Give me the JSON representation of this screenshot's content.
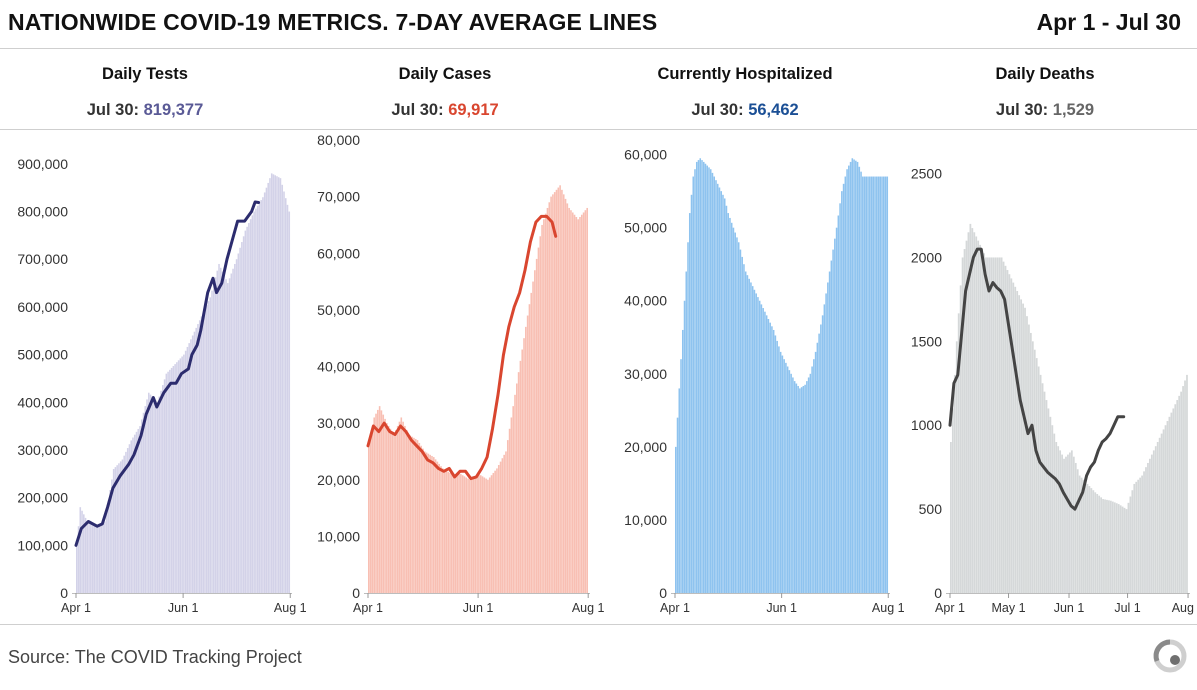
{
  "header": {
    "title": "NATIONWIDE COVID-19 METRICS. 7-DAY AVERAGE LINES",
    "date_range": "Apr 1 - Jul 30"
  },
  "metrics": [
    {
      "name": "Daily Tests",
      "value_prefix": "Jul 30:",
      "value": "819,377",
      "color": "#4f4f8f"
    },
    {
      "name": "Daily Cases",
      "value_prefix": "Jul 30:",
      "value": "69,917",
      "color": "#d9462f"
    },
    {
      "name": "Currently Hospitalized",
      "value_prefix": "Jul 30:",
      "value": "56,462",
      "color": "#1b4f95"
    },
    {
      "name": "Daily Deaths",
      "value_prefix": "Jul 30:",
      "value": "1,529",
      "color": "#555555"
    }
  ],
  "footer": {
    "source": "Source: The COVID Tracking Project",
    "logo_icon": "covid-tracking-project-logo-icon"
  },
  "chart_data": [
    {
      "type": "bar",
      "name": "Daily Tests",
      "bar_color": "#d3d2e8",
      "line_color": "#2c2c6e",
      "ylim": [
        0,
        950000
      ],
      "yticks": [
        0,
        100000,
        200000,
        300000,
        400000,
        500000,
        600000,
        700000,
        800000,
        900000
      ],
      "ytick_labels": [
        "0",
        "100,000",
        "200,000",
        "300,000",
        "400,000",
        "500,000",
        "600,000",
        "700,000",
        "800,000",
        "900,000"
      ],
      "xlim": [
        0,
        123
      ],
      "xticks": [
        0,
        61,
        122
      ],
      "xtick_labels": [
        "Apr 1",
        "Jun 1",
        "Aug 1"
      ],
      "bar_days": [
        0,
        121
      ],
      "bar_points": [
        [
          0,
          100000
        ],
        [
          2,
          180000
        ],
        [
          6,
          150000
        ],
        [
          12,
          140000
        ],
        [
          16,
          150000
        ],
        [
          21,
          260000
        ],
        [
          26,
          280000
        ],
        [
          31,
          320000
        ],
        [
          36,
          350000
        ],
        [
          41,
          420000
        ],
        [
          46,
          400000
        ],
        [
          51,
          460000
        ],
        [
          56,
          480000
        ],
        [
          61,
          500000
        ],
        [
          66,
          540000
        ],
        [
          71,
          580000
        ],
        [
          76,
          620000
        ],
        [
          81,
          690000
        ],
        [
          86,
          650000
        ],
        [
          91,
          700000
        ],
        [
          96,
          760000
        ],
        [
          101,
          800000
        ],
        [
          106,
          830000
        ],
        [
          111,
          880000
        ],
        [
          116,
          870000
        ],
        [
          121,
          800000
        ]
      ],
      "avg_points": [
        [
          0,
          100000
        ],
        [
          3,
          135000
        ],
        [
          7,
          150000
        ],
        [
          12,
          140000
        ],
        [
          15,
          145000
        ],
        [
          18,
          180000
        ],
        [
          21,
          220000
        ],
        [
          25,
          245000
        ],
        [
          30,
          270000
        ],
        [
          33,
          290000
        ],
        [
          37,
          330000
        ],
        [
          40,
          375000
        ],
        [
          44,
          410000
        ],
        [
          46,
          390000
        ],
        [
          50,
          420000
        ],
        [
          54,
          440000
        ],
        [
          57,
          440000
        ],
        [
          60,
          460000
        ],
        [
          64,
          470000
        ],
        [
          66,
          500000
        ],
        [
          69,
          520000
        ],
        [
          71,
          550000
        ],
        [
          75,
          630000
        ],
        [
          78,
          660000
        ],
        [
          80,
          630000
        ],
        [
          83,
          650000
        ],
        [
          86,
          700000
        ],
        [
          89,
          740000
        ],
        [
          92,
          780000
        ],
        [
          96,
          780000
        ],
        [
          100,
          800000
        ],
        [
          102,
          820000
        ],
        [
          104,
          819000
        ]
      ]
    },
    {
      "type": "bar",
      "name": "Daily Cases",
      "bar_color": "#f8bfb3",
      "line_color": "#d9462f",
      "ylim": [
        0,
        80000
      ],
      "yticks": [
        0,
        10000,
        20000,
        30000,
        40000,
        50000,
        60000,
        70000,
        80000
      ],
      "ytick_labels": [
        "0",
        "10,000",
        "20,000",
        "30,000",
        "40,000",
        "50,000",
        "60,000",
        "70,000",
        "80,000"
      ],
      "xlim": [
        0,
        123
      ],
      "xticks": [
        0,
        61,
        122
      ],
      "xtick_labels": [
        "Apr 1",
        "Jun 1",
        "Aug 1"
      ],
      "bar_days": [
        0,
        121
      ],
      "bar_points": [
        [
          0,
          26000
        ],
        [
          3,
          31000
        ],
        [
          6,
          33000
        ],
        [
          10,
          30000
        ],
        [
          14,
          28000
        ],
        [
          18,
          31000
        ],
        [
          22,
          28000
        ],
        [
          27,
          27000
        ],
        [
          31,
          25000
        ],
        [
          36,
          24000
        ],
        [
          41,
          22000
        ],
        [
          46,
          21000
        ],
        [
          51,
          21000
        ],
        [
          56,
          20000
        ],
        [
          61,
          21000
        ],
        [
          66,
          20000
        ],
        [
          71,
          22000
        ],
        [
          76,
          25000
        ],
        [
          81,
          35000
        ],
        [
          86,
          45000
        ],
        [
          91,
          55000
        ],
        [
          96,
          65000
        ],
        [
          101,
          70000
        ],
        [
          106,
          72000
        ],
        [
          111,
          68000
        ],
        [
          116,
          66000
        ],
        [
          121,
          68000
        ]
      ],
      "avg_points": [
        [
          0,
          26000
        ],
        [
          3,
          29500
        ],
        [
          6,
          28500
        ],
        [
          9,
          30000
        ],
        [
          12,
          28500
        ],
        [
          15,
          28000
        ],
        [
          18,
          29500
        ],
        [
          21,
          28500
        ],
        [
          24,
          27000
        ],
        [
          27,
          26000
        ],
        [
          30,
          25000
        ],
        [
          33,
          23500
        ],
        [
          36,
          23000
        ],
        [
          39,
          22000
        ],
        [
          42,
          21500
        ],
        [
          45,
          22000
        ],
        [
          48,
          20500
        ],
        [
          51,
          21500
        ],
        [
          54,
          21500
        ],
        [
          57,
          20200
        ],
        [
          60,
          20500
        ],
        [
          63,
          22000
        ],
        [
          66,
          24000
        ],
        [
          69,
          29000
        ],
        [
          72,
          35000
        ],
        [
          75,
          42000
        ],
        [
          78,
          47000
        ],
        [
          81,
          50500
        ],
        [
          84,
          53000
        ],
        [
          87,
          57000
        ],
        [
          90,
          62000
        ],
        [
          93,
          65500
        ],
        [
          96,
          66500
        ],
        [
          99,
          66500
        ],
        [
          102,
          65500
        ],
        [
          104,
          63000
        ]
      ]
    },
    {
      "type": "bar",
      "name": "Currently Hospitalized",
      "bar_color": "#8ec3ef",
      "line_color": null,
      "ylim": [
        0,
        62000
      ],
      "yticks": [
        0,
        10000,
        20000,
        30000,
        40000,
        50000,
        60000
      ],
      "ytick_labels": [
        "0",
        "10,000",
        "20,000",
        "30,000",
        "40,000",
        "50,000",
        "60,000"
      ],
      "xlim": [
        0,
        123
      ],
      "xticks": [
        0,
        61,
        122
      ],
      "xtick_labels": [
        "Apr 1",
        "Jun 1",
        "Aug 1"
      ],
      "bar_days": [
        0,
        121
      ],
      "bar_points": [
        [
          0,
          20000
        ],
        [
          2,
          28000
        ],
        [
          4,
          36000
        ],
        [
          6,
          44000
        ],
        [
          8,
          52000
        ],
        [
          10,
          57000
        ],
        [
          12,
          59000
        ],
        [
          14,
          59500
        ],
        [
          16,
          59000
        ],
        [
          18,
          58500
        ],
        [
          20,
          58000
        ],
        [
          22,
          57000
        ],
        [
          24,
          56000
        ],
        [
          26,
          55000
        ],
        [
          28,
          54000
        ],
        [
          30,
          52000
        ],
        [
          33,
          50000
        ],
        [
          36,
          48000
        ],
        [
          40,
          44000
        ],
        [
          44,
          42000
        ],
        [
          48,
          40000
        ],
        [
          52,
          38000
        ],
        [
          56,
          36000
        ],
        [
          60,
          33000
        ],
        [
          64,
          31000
        ],
        [
          68,
          29000
        ],
        [
          71,
          28000
        ],
        [
          74,
          28500
        ],
        [
          77,
          30000
        ],
        [
          80,
          33000
        ],
        [
          84,
          38000
        ],
        [
          88,
          44000
        ],
        [
          92,
          50000
        ],
        [
          95,
          55000
        ],
        [
          98,
          58000
        ],
        [
          101,
          59500
        ],
        [
          104,
          59000
        ],
        [
          107,
          57000
        ]
      ]
    },
    {
      "type": "bar",
      "name": "Daily Deaths",
      "bar_color": "#d5d8d9",
      "line_color": "#444444",
      "ylim": [
        0,
        2700
      ],
      "yticks": [
        0,
        500,
        1000,
        1500,
        2000,
        2500
      ],
      "ytick_labels": [
        "0",
        "500",
        "1000",
        "1500",
        "2000",
        "2500"
      ],
      "xlim": [
        0,
        123
      ],
      "xticks": [
        0,
        30,
        61,
        91,
        122
      ],
      "xtick_labels": [
        "Apr 1",
        "May 1",
        "Jun 1",
        "Jul 1",
        "Aug 1"
      ],
      "bar_days": [
        0,
        121
      ],
      "bar_points": [
        [
          0,
          900
        ],
        [
          3,
          1500
        ],
        [
          6,
          2000
        ],
        [
          10,
          2200
        ],
        [
          14,
          2100
        ],
        [
          18,
          2000
        ],
        [
          22,
          2000
        ],
        [
          26,
          2000
        ],
        [
          30,
          1900
        ],
        [
          34,
          1800
        ],
        [
          38,
          1700
        ],
        [
          42,
          1500
        ],
        [
          46,
          1300
        ],
        [
          50,
          1100
        ],
        [
          54,
          900
        ],
        [
          58,
          800
        ],
        [
          62,
          850
        ],
        [
          66,
          700
        ],
        [
          70,
          650
        ],
        [
          74,
          600
        ],
        [
          78,
          560
        ],
        [
          82,
          550
        ],
        [
          86,
          530
        ],
        [
          90,
          500
        ],
        [
          94,
          650
        ],
        [
          98,
          700
        ],
        [
          102,
          800
        ],
        [
          106,
          900
        ],
        [
          110,
          1000
        ],
        [
          114,
          1100
        ],
        [
          118,
          1200
        ],
        [
          121,
          1300
        ]
      ],
      "avg_points": [
        [
          0,
          1000
        ],
        [
          2,
          1250
        ],
        [
          4,
          1300
        ],
        [
          6,
          1550
        ],
        [
          8,
          1800
        ],
        [
          10,
          1900
        ],
        [
          12,
          2000
        ],
        [
          14,
          2050
        ],
        [
          16,
          2050
        ],
        [
          18,
          1900
        ],
        [
          20,
          1800
        ],
        [
          22,
          1850
        ],
        [
          24,
          1820
        ],
        [
          26,
          1800
        ],
        [
          28,
          1750
        ],
        [
          30,
          1600
        ],
        [
          32,
          1450
        ],
        [
          34,
          1300
        ],
        [
          36,
          1150
        ],
        [
          38,
          1050
        ],
        [
          40,
          950
        ],
        [
          42,
          1000
        ],
        [
          44,
          850
        ],
        [
          46,
          780
        ],
        [
          48,
          750
        ],
        [
          50,
          720
        ],
        [
          52,
          700
        ],
        [
          54,
          680
        ],
        [
          56,
          650
        ],
        [
          58,
          600
        ],
        [
          60,
          560
        ],
        [
          62,
          520
        ],
        [
          64,
          500
        ],
        [
          66,
          550
        ],
        [
          68,
          600
        ],
        [
          70,
          700
        ],
        [
          72,
          750
        ],
        [
          74,
          780
        ],
        [
          76,
          850
        ],
        [
          78,
          900
        ],
        [
          80,
          920
        ],
        [
          82,
          950
        ],
        [
          84,
          1000
        ],
        [
          86,
          1050
        ],
        [
          89,
          1050
        ]
      ]
    }
  ]
}
